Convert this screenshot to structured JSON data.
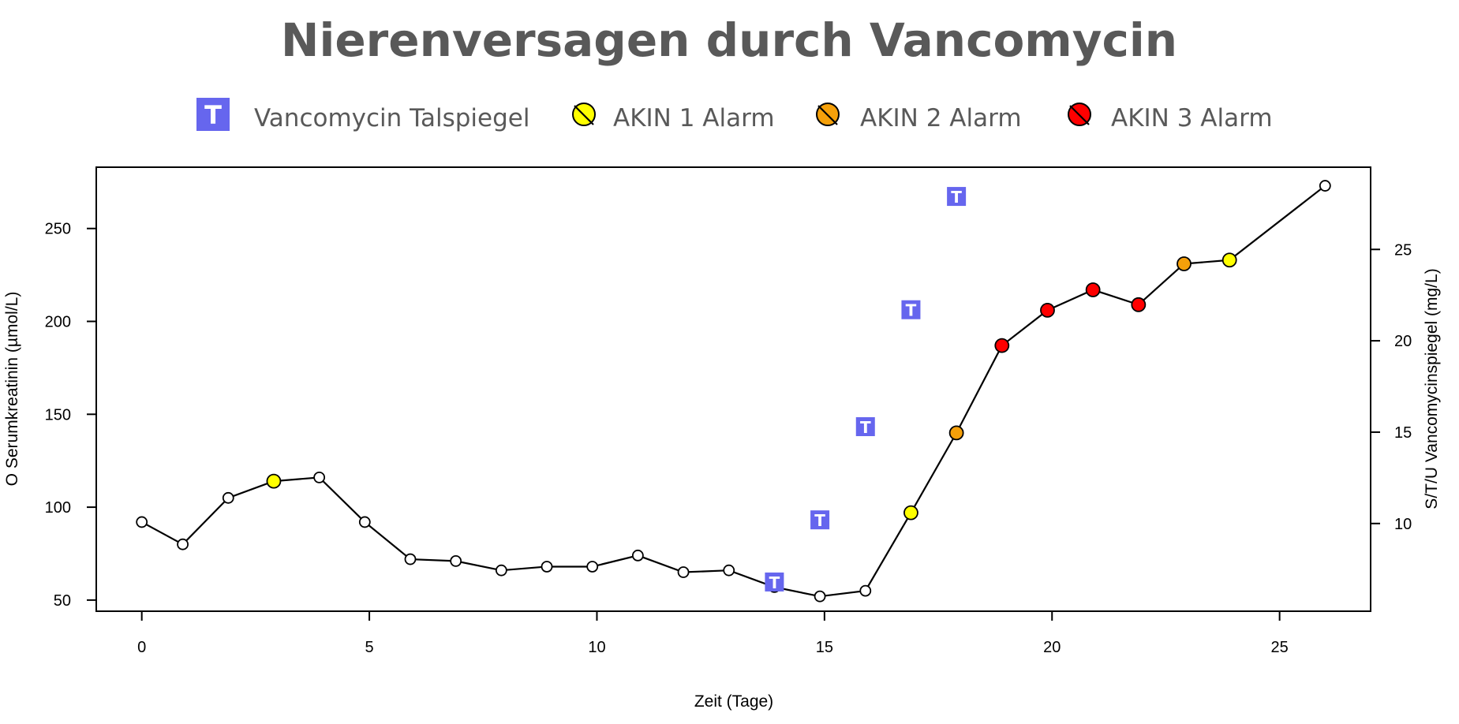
{
  "chart_data": {
    "type": "line",
    "title": "Nierenversagen durch Vancomycin",
    "xlabel": "Zeit (Tage)",
    "ylabel": "O Serumkreatinin (µmol/L)",
    "y2label": "S/T/U Vancomycinspiegel (mg/L)",
    "xlim": [
      -1,
      27
    ],
    "ylim": [
      44,
      283
    ],
    "y2lim": [
      5.2,
      29.5
    ],
    "x_ticks": [
      0,
      5,
      10,
      15,
      20,
      25
    ],
    "y_ticks": [
      50,
      100,
      150,
      200,
      250
    ],
    "y2_ticks": [
      10,
      15,
      20,
      25
    ],
    "grid": false,
    "legend_position": "top",
    "legend": [
      {
        "label": "Vancomycin Talspiegel",
        "marker": "T-square",
        "color": "#6666ee"
      },
      {
        "label": "AKIN 1 Alarm",
        "marker": "circle",
        "color": "#ffff00"
      },
      {
        "label": "AKIN 2 Alarm",
        "marker": "circle",
        "color": "#f5a00a"
      },
      {
        "label": "AKIN 3 Alarm",
        "marker": "circle",
        "color": "#ff0000"
      }
    ],
    "series": [
      {
        "name": "Serumkreatinin",
        "axis": "left",
        "x": [
          0,
          0.9,
          1.9,
          2.9,
          3.9,
          4.9,
          5.9,
          6.9,
          7.9,
          8.9,
          9.9,
          10.9,
          11.9,
          12.9,
          13.9,
          14.9,
          15.9,
          16.9,
          17.9,
          18.9,
          19.9,
          20.9,
          21.9,
          22.9,
          23.9,
          26
        ],
        "y": [
          92,
          80,
          105,
          114,
          116,
          92,
          72,
          71,
          66,
          68,
          68,
          74,
          65,
          66,
          57,
          52,
          55,
          97,
          140,
          187,
          206,
          217,
          209,
          231,
          233,
          273
        ],
        "status": [
          "none",
          "none",
          "none",
          "akin1",
          "none",
          "none",
          "none",
          "none",
          "none",
          "none",
          "none",
          "none",
          "none",
          "none",
          "none",
          "none",
          "none",
          "akin1",
          "akin2",
          "akin3",
          "akin3",
          "akin3",
          "akin3",
          "akin2",
          "akin1",
          "none"
        ]
      },
      {
        "name": "Vancomycin Talspiegel",
        "axis": "right",
        "x": [
          13.9,
          14.9,
          15.9,
          16.9,
          17.9
        ],
        "y": [
          6.8,
          10.2,
          15.3,
          21.7,
          27.9
        ]
      }
    ],
    "status_colors": {
      "none": "#ffffff",
      "akin1": "#ffff00",
      "akin2": "#f5a00a",
      "akin3": "#ff0000"
    },
    "trough_marker_label": "T"
  }
}
